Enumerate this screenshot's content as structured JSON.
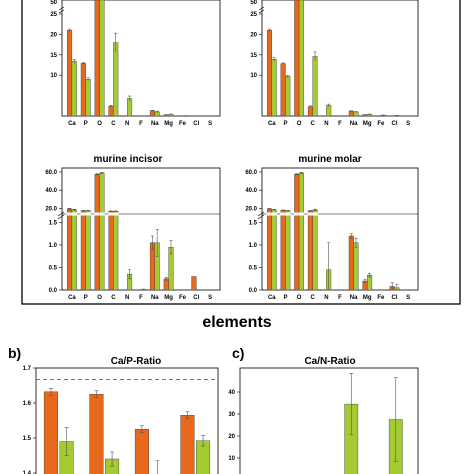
{
  "colors": {
    "enamel": "#e8681c",
    "dentin": "#a4cc32",
    "frame": "#000000",
    "dashed": "#777777",
    "errorbar": "#555555"
  },
  "xlabel_main": "elements",
  "chart_data": [
    {
      "type": "bar",
      "title": "",
      "categories": [
        "Ca",
        "P",
        "O",
        "C",
        "N",
        "F",
        "Na",
        "Mg",
        "Fe",
        "Cl",
        "S"
      ],
      "series": [
        {
          "values": [
            21,
            12.9,
            50,
            2.4,
            0,
            0,
            1.3,
            0.3,
            0,
            0,
            0
          ],
          "errors": [
            0.3,
            0.2,
            0.5,
            0.2,
            0,
            0,
            0.1,
            0.05,
            0,
            0,
            0
          ]
        },
        {
          "values": [
            13.4,
            9.0,
            50,
            18.0,
            4.3,
            0,
            1.0,
            0.4,
            0.1,
            0,
            0
          ],
          "errors": [
            0.5,
            0.4,
            0.5,
            2.3,
            0.6,
            0,
            0.2,
            0.1,
            0,
            0,
            0
          ]
        }
      ],
      "yticks": [
        "10",
        "15",
        "20",
        "25"
      ],
      "ytick_top": "50"
    },
    {
      "type": "bar",
      "title": "",
      "categories": [
        "Ca",
        "P",
        "O",
        "C",
        "N",
        "F",
        "Na",
        "Mg",
        "Fe",
        "Cl",
        "S"
      ],
      "series": [
        {
          "values": [
            21,
            12.8,
            50,
            2.3,
            0,
            0,
            1.2,
            0.3,
            0,
            0,
            0
          ],
          "errors": [
            0.3,
            0.2,
            0.5,
            0.2,
            0,
            0,
            0.1,
            0.05,
            0,
            0,
            0
          ]
        },
        {
          "values": [
            13.9,
            9.7,
            50,
            14.6,
            2.6,
            0,
            1.0,
            0.4,
            0.2,
            0.1,
            0
          ],
          "errors": [
            0.4,
            0.3,
            0.5,
            1.1,
            0.3,
            0,
            0.1,
            0.1,
            0.05,
            0.05,
            0
          ]
        }
      ],
      "yticks": [
        "10",
        "15",
        "20",
        "25"
      ],
      "ytick_top": "50"
    },
    {
      "type": "bar",
      "title": "murine incisor",
      "categories": [
        "Ca",
        "P",
        "O",
        "C",
        "N",
        "F",
        "Na",
        "Mg",
        "Fe",
        "Cl",
        "S"
      ],
      "series": [
        {
          "values": [
            19.5,
            17.5,
            57.5,
            16.8,
            0,
            0,
            1.05,
            0.25,
            0,
            0.3,
            0
          ],
          "errors": [
            0.5,
            0.3,
            0.6,
            0.4,
            0,
            0,
            0.15,
            0.03,
            0,
            0,
            0
          ]
        },
        {
          "values": [
            18.5,
            17.5,
            59.0,
            16.8,
            0.35,
            0.01,
            1.05,
            0.95,
            0,
            0,
            0
          ],
          "errors": [
            0.5,
            0.3,
            0.6,
            0.4,
            0.1,
            0.01,
            0.3,
            0.15,
            0,
            0,
            0
          ]
        }
      ],
      "yticks_low": [
        "0.0",
        "0.5",
        "1.0",
        "1.5"
      ],
      "yticks_high": [
        "20.0",
        "40.0",
        "60.0"
      ]
    },
    {
      "type": "bar",
      "title": "murine molar",
      "categories": [
        "Ca",
        "P",
        "O",
        "C",
        "N",
        "F",
        "Na",
        "Mg",
        "Fe",
        "Cl",
        "S"
      ],
      "series": [
        {
          "values": [
            19.5,
            18.0,
            57.5,
            17.3,
            0,
            0,
            1.2,
            0.2,
            0,
            0.08,
            0
          ],
          "errors": [
            0.4,
            0.3,
            0.6,
            0.4,
            0,
            0,
            0.05,
            0.03,
            0,
            0.08,
            0
          ]
        },
        {
          "values": [
            18.5,
            17.5,
            59.0,
            18.3,
            0.45,
            0,
            1.05,
            0.33,
            0,
            0.05,
            0
          ],
          "errors": [
            0.4,
            0.3,
            0.6,
            0.8,
            0.6,
            0,
            0.1,
            0.04,
            0,
            0.08,
            0
          ]
        }
      ],
      "yticks_low": [
        "0.0",
        "0.5",
        "1.0",
        "1.5"
      ],
      "yticks_high": [
        "20.0",
        "40.0",
        "60.0"
      ]
    },
    {
      "type": "bar",
      "panel_label": "b)",
      "title": "Ca/P-Ratio",
      "groups": 4,
      "series": [
        {
          "values": [
            1.632,
            1.625,
            1.525,
            1.565
          ],
          "errors": [
            0.01,
            0.01,
            0.01,
            0.01
          ]
        },
        {
          "values": [
            1.49,
            1.44,
            1.395,
            1.492
          ],
          "errors": [
            0.04,
            0.02,
            0.04,
            0.015
          ]
        }
      ],
      "reference_line": 1.667,
      "ylim": [
        1.38,
        1.7
      ],
      "yticks": [
        "1.4",
        "1.5",
        "1.6",
        "1.7"
      ]
    },
    {
      "type": "bar",
      "panel_label": "c)",
      "title": "Ca/N-Ratio",
      "groups": 4,
      "series": [
        {
          "values": [
            0,
            0,
            34.5,
            27.5
          ],
          "errors": [
            0,
            0,
            14,
            19
          ]
        }
      ],
      "ylim": [
        0,
        50
      ],
      "yticks": [
        "10",
        "20",
        "30",
        "40"
      ]
    }
  ]
}
